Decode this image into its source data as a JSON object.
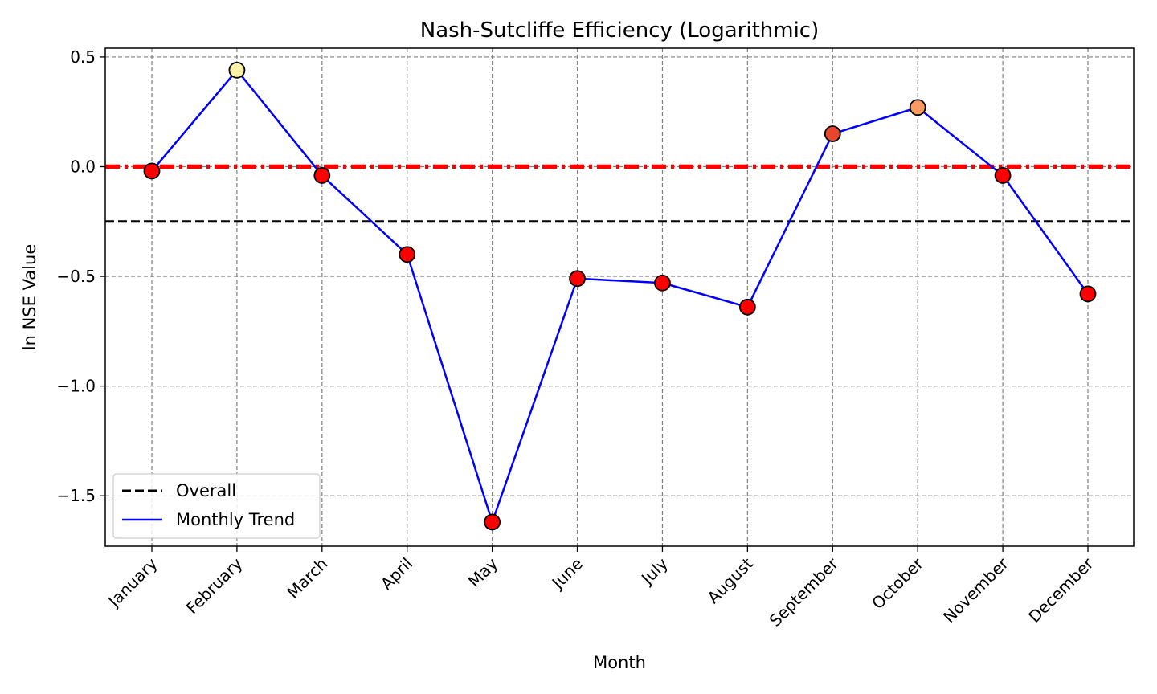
{
  "chart_data": {
    "type": "line",
    "title": "Nash-Sutcliffe Efficiency (Logarithmic)",
    "xlabel": "Month",
    "ylabel": "ln NSE Value",
    "categories": [
      "January",
      "February",
      "March",
      "April",
      "May",
      "June",
      "July",
      "August",
      "September",
      "October",
      "November",
      "December"
    ],
    "series": [
      {
        "name": "Monthly Trend",
        "values": [
          -0.02,
          0.44,
          -0.04,
          -0.4,
          -1.62,
          -0.51,
          -0.53,
          -0.64,
          0.15,
          0.27,
          -0.04,
          -0.58
        ],
        "line_color": "#0000ff",
        "marker_colors": [
          "#ff0000",
          "#fff2a8",
          "#ff0000",
          "#ff0000",
          "#ff0000",
          "#ff0000",
          "#ff0000",
          "#ff0000",
          "#e8452c",
          "#fc9a60",
          "#ff0000",
          "#ff0000"
        ]
      }
    ],
    "reference_lines": [
      {
        "name": "Overall",
        "value": -0.25,
        "color": "#000000",
        "style": "dashed"
      },
      {
        "value": 0.0,
        "color": "#ff0000",
        "style": "dash-dot"
      }
    ],
    "ylim": [
      -1.73,
      0.54
    ],
    "yticks": [
      0.5,
      0.0,
      -0.5,
      -1.0,
      -1.5
    ],
    "ytick_labels": [
      "0.5",
      "0.0",
      "−0.5",
      "−1.0",
      "−1.5"
    ],
    "grid": true,
    "legend": {
      "position": "lower-left",
      "entries": [
        "Overall",
        "Monthly Trend"
      ]
    }
  }
}
